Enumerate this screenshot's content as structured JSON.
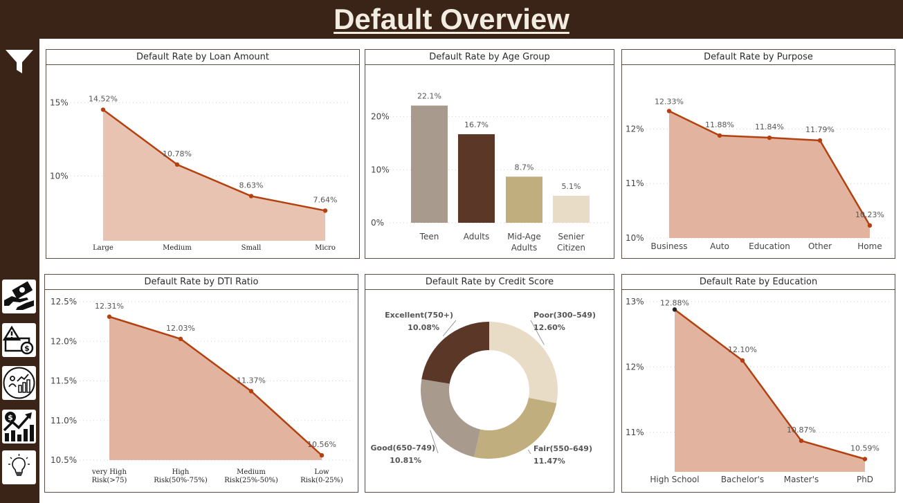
{
  "header": {
    "title": "Default Overview"
  },
  "sidebar": {
    "filter_icon": "filter-icon",
    "items": [
      {
        "icon": "money-hand-icon"
      },
      {
        "icon": "warning-money-icon"
      },
      {
        "icon": "people-chart-icon"
      },
      {
        "icon": "dollar-growth-icon"
      },
      {
        "icon": "lightbulb-icon"
      }
    ]
  },
  "colors": {
    "dark_brown": "#3a2418",
    "line": "#b5400f",
    "area_light": "#e9c3b2",
    "area": "#e2b39f",
    "bars": [
      "#a89b8e",
      "#5b3727",
      "#c1ae7f",
      "#e8dcc6"
    ],
    "donut": [
      "#e8dcc6",
      "#c1ae7f",
      "#a89b8e",
      "#5b3727"
    ],
    "label_accent": "#b5400f"
  },
  "chart_data": [
    {
      "id": "loan",
      "type": "area",
      "title": "Default Rate by Loan Amount",
      "categories": [
        "Large",
        "Medium",
        "Small",
        "Micro"
      ],
      "values": [
        14.52,
        10.78,
        8.63,
        7.64
      ],
      "data_labels": [
        "14.52%",
        "10.78%",
        "8.63%",
        "7.64%"
      ],
      "ylim": [
        7.0,
        15.3
      ],
      "yticks": [
        {
          "v": 10,
          "label": "10%"
        },
        {
          "v": 15,
          "label": "15%"
        }
      ],
      "grid": true
    },
    {
      "id": "age",
      "type": "bar",
      "title": "Default Rate by Age Group",
      "categories": [
        [
          "Teen"
        ],
        [
          "Adults"
        ],
        [
          "Mid-Age",
          "Adults"
        ],
        [
          "Senier",
          "Citizen"
        ]
      ],
      "values": [
        22.1,
        16.7,
        8.7,
        5.1
      ],
      "data_labels": [
        "22.1%",
        "16.7%",
        "8.7%",
        "5.1%"
      ],
      "ylim": [
        0,
        24
      ],
      "yticks": [
        {
          "v": 0,
          "label": "0%"
        },
        {
          "v": 10,
          "label": "10%"
        },
        {
          "v": 20,
          "label": "20%"
        }
      ],
      "grid": true
    },
    {
      "id": "purpose",
      "type": "area",
      "title": "Default Rate by Purpose",
      "categories": [
        "Business",
        "Auto",
        "Education",
        "Other",
        "Home"
      ],
      "values": [
        12.33,
        11.88,
        11.84,
        11.79,
        10.23
      ],
      "data_labels": [
        "12.33%",
        "11.88%",
        "11.84%",
        "11.79%",
        "10.23%"
      ],
      "ylim": [
        10,
        12.45
      ],
      "yticks": [
        {
          "v": 10,
          "label": "10%"
        },
        {
          "v": 11,
          "label": "11%"
        },
        {
          "v": 12,
          "label": "12%"
        }
      ],
      "grid": true
    },
    {
      "id": "dti",
      "type": "area",
      "title": "Default Rate by DTI Ratio",
      "categories": [
        [
          "very High",
          "Risk(>75)"
        ],
        [
          "High",
          "Risk(50%-75%)"
        ],
        [
          "Medium",
          "Risk(25%-50%)"
        ],
        [
          "Low",
          "Risk(0-25%)"
        ]
      ],
      "values": [
        12.31,
        12.03,
        11.37,
        10.56
      ],
      "data_labels": [
        "12.31%",
        "12.03%",
        "11.37%",
        "10.56%"
      ],
      "ylim": [
        10.5,
        12.5
      ],
      "yticks": [
        {
          "v": 10.5,
          "label": "10.5%"
        },
        {
          "v": 11.0,
          "label": "11.0%"
        },
        {
          "v": 11.5,
          "label": "11.5%"
        },
        {
          "v": 12.0,
          "label": "12.0%"
        },
        {
          "v": 12.5,
          "label": "12.5%"
        }
      ],
      "grid": true
    },
    {
      "id": "credit",
      "type": "pie",
      "title": "Default Rate by Credit Score",
      "labels": [
        "Poor(300–549)",
        "Fair(550–649)",
        "Good(650–749)",
        "Excellent(750+)"
      ],
      "values": [
        12.6,
        11.47,
        10.81,
        10.08
      ],
      "data_labels": [
        "12.60%",
        "11.47%",
        "10.81%",
        "10.08%"
      ]
    },
    {
      "id": "education",
      "type": "area",
      "title": "Default Rate by Education",
      "categories": [
        "High School",
        "Bachelor's",
        "Master's",
        "PhD"
      ],
      "values": [
        12.88,
        12.1,
        10.87,
        10.59
      ],
      "data_labels": [
        "12.88%",
        "12.10%",
        "10.87%",
        "10.59%"
      ],
      "ylim": [
        10.5,
        13
      ],
      "yticks": [
        {
          "v": 11,
          "label": "11%"
        },
        {
          "v": 12,
          "label": "12%"
        },
        {
          "v": 13,
          "label": "13%"
        }
      ],
      "grid": true
    }
  ]
}
